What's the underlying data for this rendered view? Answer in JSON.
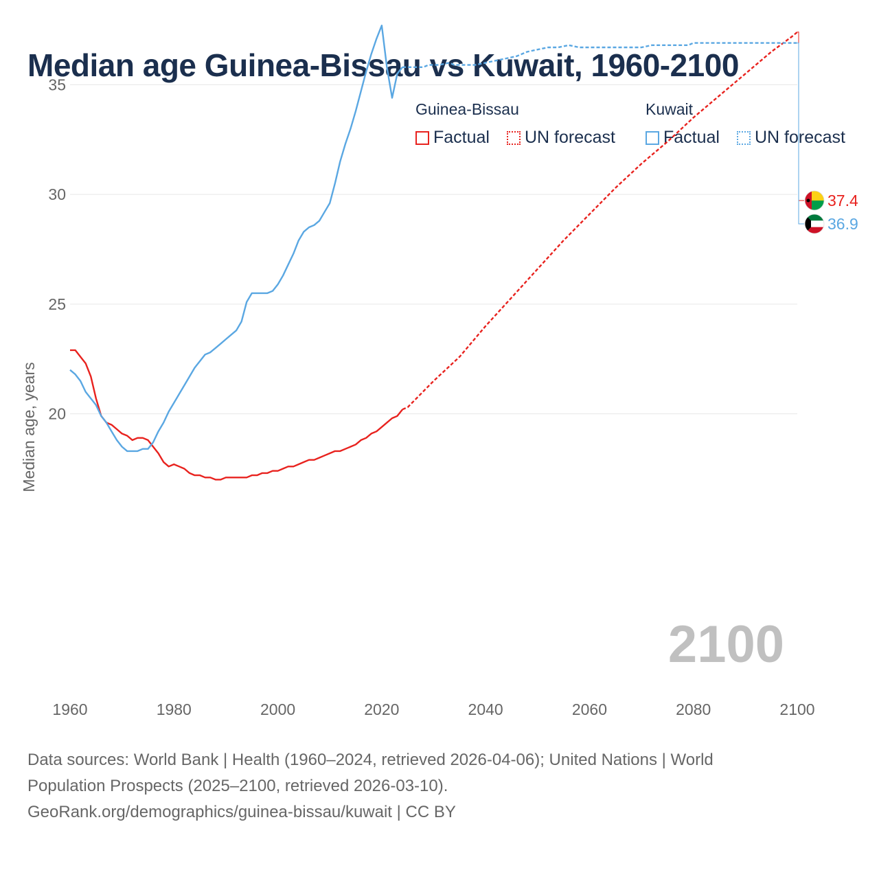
{
  "title": "Median age Guinea-Bissau vs Kuwait, 1960-2100",
  "legend": {
    "guinea_bissau": {
      "name": "Guinea-Bissau",
      "factual": "Factual",
      "forecast": "UN forecast"
    },
    "kuwait": {
      "name": "Kuwait",
      "factual": "Factual",
      "forecast": "UN forecast"
    }
  },
  "colors": {
    "guinea_bissau": "#e8221e",
    "kuwait": "#5aa7e2",
    "grid": "#e6e6e6",
    "axis_text": "#666666"
  },
  "watermark_year": "2100",
  "footer": {
    "line1": "Data sources: World Bank | Health (1960–2024, retrieved 2026-04-06); United Nations | World",
    "line2": "Population Prospects (2025–2100, retrieved 2026-03-10).",
    "line3": "GeoRank.org/demographics/guinea-bissau/kuwait | CC BY"
  },
  "chart_data": {
    "type": "line",
    "title": "Median age Guinea-Bissau vs Kuwait, 1960-2100",
    "xlabel": "",
    "ylabel": "Median age, years",
    "xlim": [
      1960,
      2100
    ],
    "ylim": [
      15,
      38
    ],
    "x_ticks": [
      1960,
      1980,
      2000,
      2020,
      2040,
      2060,
      2080,
      2100
    ],
    "y_ticks": [
      20,
      25,
      30,
      35
    ],
    "grid": true,
    "series": [
      {
        "name": "Guinea-Bissau",
        "kind": "factual",
        "color": "#e8221e",
        "points": [
          [
            1960,
            22.9
          ],
          [
            1961,
            22.9
          ],
          [
            1962,
            22.6
          ],
          [
            1963,
            22.3
          ],
          [
            1964,
            21.7
          ],
          [
            1965,
            20.7
          ],
          [
            1966,
            19.9
          ],
          [
            1967,
            19.6
          ],
          [
            1968,
            19.5
          ],
          [
            1969,
            19.3
          ],
          [
            1970,
            19.1
          ],
          [
            1971,
            19.0
          ],
          [
            1972,
            18.8
          ],
          [
            1973,
            18.9
          ],
          [
            1974,
            18.9
          ],
          [
            1975,
            18.8
          ],
          [
            1976,
            18.5
          ],
          [
            1977,
            18.2
          ],
          [
            1978,
            17.8
          ],
          [
            1979,
            17.6
          ],
          [
            1980,
            17.7
          ],
          [
            1981,
            17.6
          ],
          [
            1982,
            17.5
          ],
          [
            1983,
            17.3
          ],
          [
            1984,
            17.2
          ],
          [
            1985,
            17.2
          ],
          [
            1986,
            17.1
          ],
          [
            1987,
            17.1
          ],
          [
            1988,
            17.0
          ],
          [
            1989,
            17.0
          ],
          [
            1990,
            17.1
          ],
          [
            1991,
            17.1
          ],
          [
            1992,
            17.1
          ],
          [
            1993,
            17.1
          ],
          [
            1994,
            17.1
          ],
          [
            1995,
            17.2
          ],
          [
            1996,
            17.2
          ],
          [
            1997,
            17.3
          ],
          [
            1998,
            17.3
          ],
          [
            1999,
            17.4
          ],
          [
            2000,
            17.4
          ],
          [
            2001,
            17.5
          ],
          [
            2002,
            17.6
          ],
          [
            2003,
            17.6
          ],
          [
            2004,
            17.7
          ],
          [
            2005,
            17.8
          ],
          [
            2006,
            17.9
          ],
          [
            2007,
            17.9
          ],
          [
            2008,
            18.0
          ],
          [
            2009,
            18.1
          ],
          [
            2010,
            18.2
          ],
          [
            2011,
            18.3
          ],
          [
            2012,
            18.3
          ],
          [
            2013,
            18.4
          ],
          [
            2014,
            18.5
          ],
          [
            2015,
            18.6
          ],
          [
            2016,
            18.8
          ],
          [
            2017,
            18.9
          ],
          [
            2018,
            19.1
          ],
          [
            2019,
            19.2
          ],
          [
            2020,
            19.4
          ],
          [
            2021,
            19.6
          ],
          [
            2022,
            19.8
          ],
          [
            2023,
            19.9
          ],
          [
            2024,
            20.2
          ]
        ]
      },
      {
        "name": "Guinea-Bissau",
        "kind": "forecast",
        "color": "#e8221e",
        "points": [
          [
            2024,
            20.2
          ],
          [
            2025,
            20.3
          ],
          [
            2030,
            21.5
          ],
          [
            2035,
            22.6
          ],
          [
            2040,
            24.0
          ],
          [
            2045,
            25.3
          ],
          [
            2050,
            26.6
          ],
          [
            2055,
            27.9
          ],
          [
            2060,
            29.1
          ],
          [
            2065,
            30.3
          ],
          [
            2070,
            31.4
          ],
          [
            2075,
            32.4
          ],
          [
            2080,
            33.5
          ],
          [
            2085,
            34.5
          ],
          [
            2090,
            35.5
          ],
          [
            2095,
            36.5
          ],
          [
            2099,
            37.2
          ],
          [
            2100,
            37.4
          ]
        ]
      },
      {
        "name": "Kuwait",
        "kind": "factual",
        "color": "#5aa7e2",
        "points": [
          [
            1960,
            22.0
          ],
          [
            1961,
            21.8
          ],
          [
            1962,
            21.5
          ],
          [
            1963,
            21.0
          ],
          [
            1964,
            20.7
          ],
          [
            1965,
            20.4
          ],
          [
            1966,
            19.9
          ],
          [
            1967,
            19.6
          ],
          [
            1968,
            19.2
          ],
          [
            1969,
            18.8
          ],
          [
            1970,
            18.5
          ],
          [
            1971,
            18.3
          ],
          [
            1972,
            18.3
          ],
          [
            1973,
            18.3
          ],
          [
            1974,
            18.4
          ],
          [
            1975,
            18.4
          ],
          [
            1976,
            18.7
          ],
          [
            1977,
            19.2
          ],
          [
            1978,
            19.6
          ],
          [
            1979,
            20.1
          ],
          [
            1980,
            20.5
          ],
          [
            1981,
            20.9
          ],
          [
            1982,
            21.3
          ],
          [
            1983,
            21.7
          ],
          [
            1984,
            22.1
          ],
          [
            1985,
            22.4
          ],
          [
            1986,
            22.7
          ],
          [
            1987,
            22.8
          ],
          [
            1988,
            23.0
          ],
          [
            1989,
            23.2
          ],
          [
            1990,
            23.4
          ],
          [
            1991,
            23.6
          ],
          [
            1992,
            23.8
          ],
          [
            1993,
            24.2
          ],
          [
            1994,
            25.1
          ],
          [
            1995,
            25.5
          ],
          [
            1996,
            25.5
          ],
          [
            1997,
            25.5
          ],
          [
            1998,
            25.5
          ],
          [
            1999,
            25.6
          ],
          [
            2000,
            25.9
          ],
          [
            2001,
            26.3
          ],
          [
            2002,
            26.8
          ],
          [
            2003,
            27.3
          ],
          [
            2004,
            27.9
          ],
          [
            2005,
            28.3
          ],
          [
            2006,
            28.5
          ],
          [
            2007,
            28.6
          ],
          [
            2008,
            28.8
          ],
          [
            2009,
            29.2
          ],
          [
            2010,
            29.6
          ],
          [
            2011,
            30.5
          ],
          [
            2012,
            31.5
          ],
          [
            2013,
            32.3
          ],
          [
            2014,
            33.0
          ],
          [
            2015,
            33.8
          ],
          [
            2016,
            34.7
          ],
          [
            2017,
            35.6
          ],
          [
            2018,
            36.4
          ],
          [
            2019,
            37.1
          ],
          [
            2020,
            37.7
          ],
          [
            2021,
            35.8
          ],
          [
            2022,
            34.4
          ],
          [
            2023,
            35.5
          ],
          [
            2024,
            35.8
          ]
        ]
      },
      {
        "name": "Kuwait",
        "kind": "forecast",
        "color": "#5aa7e2",
        "points": [
          [
            2024,
            35.8
          ],
          [
            2028,
            35.8
          ],
          [
            2029,
            35.9
          ],
          [
            2031,
            35.9
          ],
          [
            2033,
            36.0
          ],
          [
            2034,
            35.9
          ],
          [
            2038,
            35.9
          ],
          [
            2040,
            36.0
          ],
          [
            2042,
            36.1
          ],
          [
            2044,
            36.2
          ],
          [
            2046,
            36.3
          ],
          [
            2048,
            36.5
          ],
          [
            2050,
            36.6
          ],
          [
            2052,
            36.7
          ],
          [
            2054,
            36.7
          ],
          [
            2056,
            36.8
          ],
          [
            2058,
            36.7
          ],
          [
            2060,
            36.7
          ],
          [
            2062,
            36.7
          ],
          [
            2064,
            36.7
          ],
          [
            2066,
            36.7
          ],
          [
            2068,
            36.7
          ],
          [
            2070,
            36.7
          ],
          [
            2072,
            36.8
          ],
          [
            2076,
            36.8
          ],
          [
            2079,
            36.8
          ],
          [
            2080,
            36.9
          ],
          [
            2085,
            36.9
          ],
          [
            2090,
            36.9
          ],
          [
            2095,
            36.9
          ],
          [
            2100,
            36.9
          ]
        ]
      }
    ],
    "end_labels": [
      {
        "series": "Guinea-Bissau",
        "value": 37.4,
        "text": "37.4"
      },
      {
        "series": "Kuwait",
        "value": 36.9,
        "text": "36.9"
      }
    ]
  }
}
